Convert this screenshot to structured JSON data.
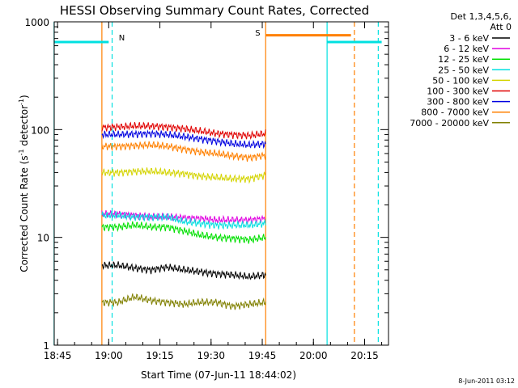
{
  "chart_data": {
    "type": "line",
    "title": "HESSI Observing Summary Count Rates, Corrected",
    "xlabel": "Start Time (07-Jun-11 18:44:02)",
    "ylabel_main": "Corrected Count Rate (s",
    "ylabel_mid": " detector",
    "ylabel_close": ")",
    "ylabel_sup": "-1",
    "y_scale": "log",
    "ylim": [
      1,
      1000
    ],
    "xlim": [
      "18:44:02",
      "20:22"
    ],
    "x_ticks": [
      "18:45",
      "19:00",
      "19:15",
      "19:30",
      "19:45",
      "20:00",
      "20:15"
    ],
    "y_ticks": [
      "1",
      "10",
      "100",
      "1000"
    ],
    "legend_placement": "top-right outside plot",
    "legend_header": [
      "Det 1,3,4,5,6,",
      "Att 0"
    ],
    "series": [
      {
        "name": "3 - 6 keV",
        "color": "#000000",
        "start": "18:58",
        "end": "19:46",
        "values": [
          5.5,
          5.5,
          5.2,
          5.0,
          5.3,
          5.0,
          4.8,
          4.6,
          4.5,
          4.3,
          4.5
        ]
      },
      {
        "name": "6 - 12 keV",
        "color": "#e000e0",
        "start": "18:58",
        "end": "19:46",
        "values": [
          16.5,
          16.5,
          16.0,
          15.5,
          15.5,
          15.2,
          15.0,
          14.5,
          14.5,
          14.5,
          15.0
        ]
      },
      {
        "name": "12 - 25 keV",
        "color": "#00e000",
        "start": "18:58",
        "end": "19:46",
        "values": [
          12.5,
          12.5,
          13.0,
          12.5,
          12.5,
          11.5,
          10.5,
          10.0,
          9.8,
          9.5,
          10.0
        ]
      },
      {
        "name": "25 - 50 keV",
        "color": "#00e0e0",
        "start": "18:58",
        "end": "19:46",
        "values": [
          16.0,
          16.0,
          15.5,
          15.5,
          15.5,
          14.0,
          13.5,
          13.0,
          13.0,
          13.0,
          13.5
        ]
      },
      {
        "name": "50 - 100 keV",
        "color": "#d4d400",
        "start": "18:58",
        "end": "19:46",
        "values": [
          40,
          40,
          41,
          41,
          40,
          39,
          37,
          36,
          35,
          35,
          38
        ]
      },
      {
        "name": "100 - 300 keV",
        "color": "#e00000",
        "start": "18:58",
        "end": "19:46",
        "values": [
          105,
          106,
          108,
          108,
          106,
          102,
          97,
          92,
          90,
          88,
          92
        ]
      },
      {
        "name": "300 - 800 keV",
        "color": "#0000e0",
        "start": "18:58",
        "end": "19:46",
        "values": [
          90,
          90,
          91,
          92,
          90,
          86,
          82,
          78,
          74,
          72,
          74
        ]
      },
      {
        "name": "800 - 7000 keV",
        "color": "#ff8000",
        "start": "18:58",
        "end": "19:46",
        "values": [
          70,
          70,
          71,
          72,
          70,
          66,
          62,
          60,
          57,
          55,
          58
        ]
      },
      {
        "name": "7000 - 20000 keV",
        "color": "#808000",
        "start": "18:58",
        "end": "19:46",
        "values": [
          2.5,
          2.5,
          2.8,
          2.6,
          2.5,
          2.4,
          2.5,
          2.5,
          2.3,
          2.4,
          2.5
        ]
      }
    ],
    "annotations": {
      "night_label": "N",
      "saa_label": "S",
      "night_color": "#00e0e0",
      "saa_color": "#ff8000",
      "bars": [
        {
          "color": "#00e0e0",
          "start": "18:44",
          "end": "19:00",
          "level": 650
        },
        {
          "color": "#ff8000",
          "start": "19:46",
          "end": "20:11",
          "level": 750
        },
        {
          "color": "#00e0e0",
          "start": "20:04",
          "end": "20:20",
          "level": 650
        }
      ],
      "vlines": [
        {
          "color": "#00e0e0",
          "time": "18:44",
          "dashed": false
        },
        {
          "color": "#00e0e0",
          "time": "19:01",
          "dashed": true
        },
        {
          "color": "#ff8000",
          "time": "18:58",
          "dashed": false
        },
        {
          "color": "#ff8000",
          "time": "19:46",
          "dashed": false
        },
        {
          "color": "#00e0e0",
          "time": "20:04",
          "dashed": false
        },
        {
          "color": "#ff8000",
          "time": "20:12",
          "dashed": true
        },
        {
          "color": "#00e0e0",
          "time": "20:19",
          "dashed": true
        }
      ]
    },
    "footer_date": "8-Jun-2011 03:12"
  }
}
